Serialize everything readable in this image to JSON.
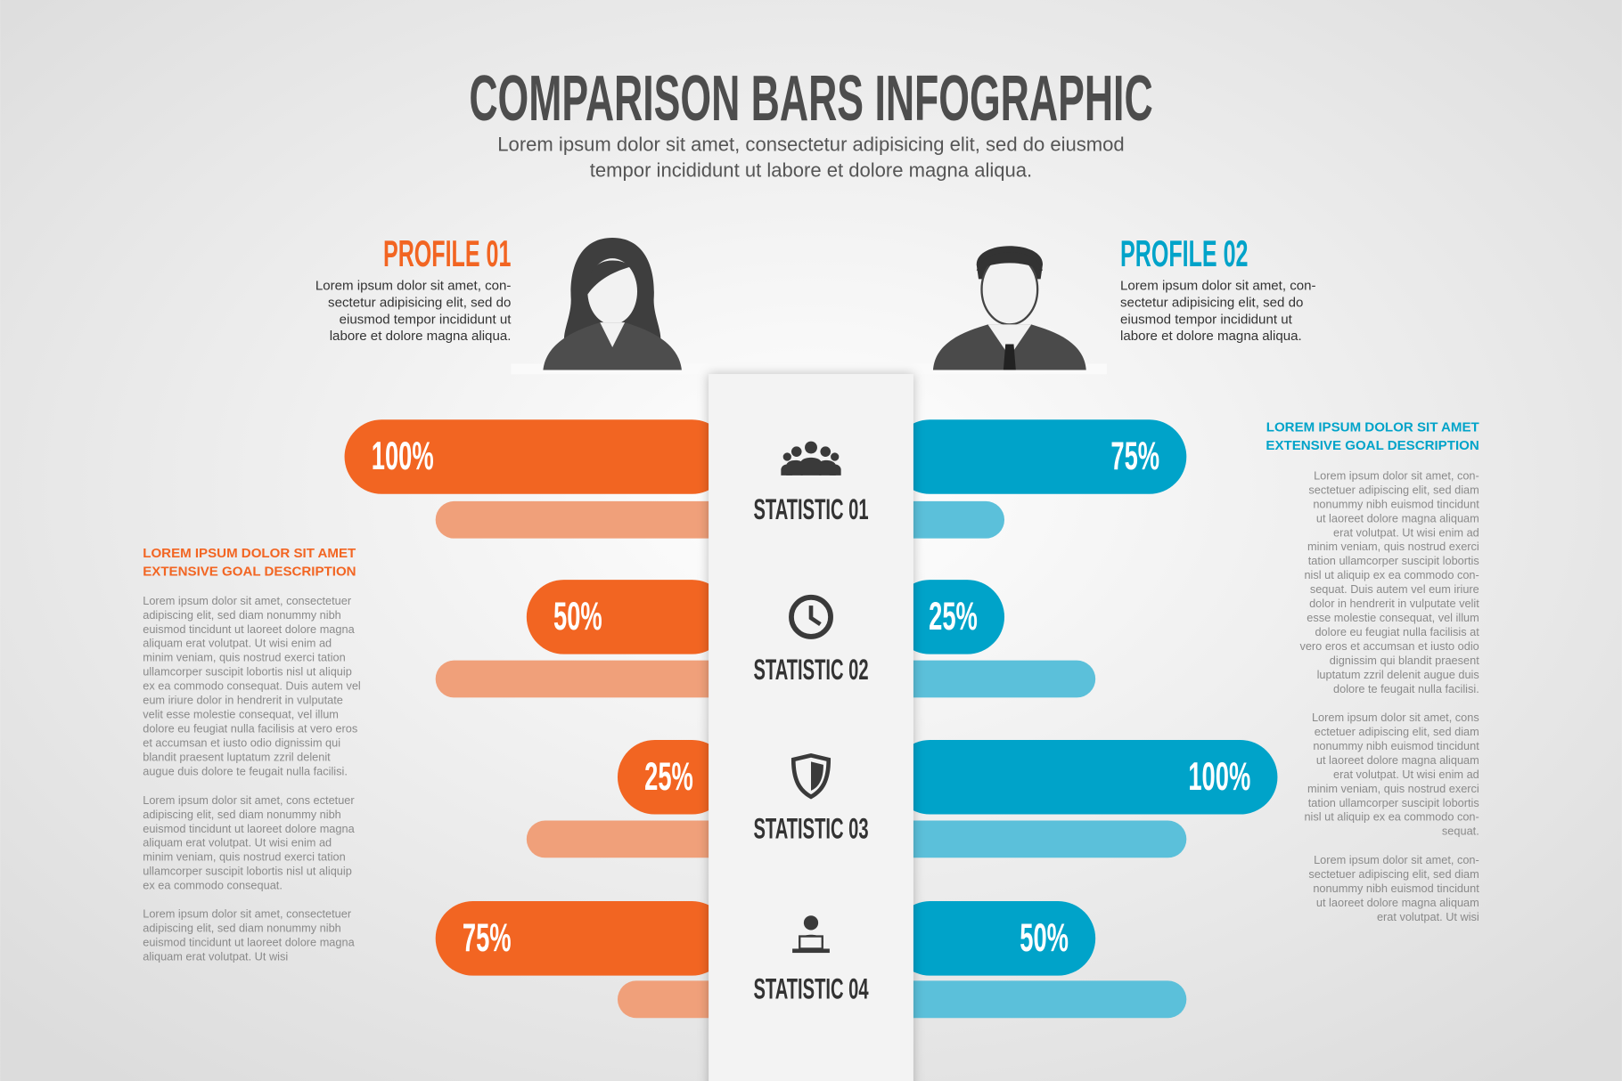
{
  "chart_data": {
    "type": "butterfly",
    "title": "COMPARISON BARS INFOGRAPHIC",
    "subtitle": [
      "Lorem ipsum dolor sit amet, consectetur adipisicing elit, sed do eiusmod",
      "tempor incididunt ut labore et dolore magna aliqua."
    ],
    "categories": [
      "STATISTIC 01",
      "STATISTIC 02",
      "STATISTIC 03",
      "STATISTIC 04"
    ],
    "series": [
      {
        "name": "PROFILE 01",
        "color": "#f26522",
        "shadow_color": "#f0a07a",
        "description": [
          "Lorem ipsum dolor sit amet, con-",
          "sectetur adipisicing elit, sed do",
          "eiusmod tempor incididunt ut",
          "labore et dolore magna aliqua."
        ],
        "values": [
          100,
          50,
          25,
          75
        ],
        "value_labels": [
          "100%",
          "50%",
          "25%",
          "75%"
        ],
        "shadow_values": [
          75,
          75,
          50,
          25
        ]
      },
      {
        "name": "PROFILE 02",
        "color": "#00a3c9",
        "shadow_color": "#5bc0da",
        "description": [
          "Lorem ipsum dolor sit amet, con-",
          "sectetur adipisicing elit, sed do",
          "eiusmod tempor incididunt ut",
          "labore et dolore magna aliqua."
        ],
        "values": [
          75,
          25,
          100,
          50
        ],
        "value_labels": [
          "75%",
          "25%",
          "100%",
          "50%"
        ],
        "shadow_values": [
          25,
          50,
          75,
          75
        ]
      }
    ],
    "annotations": [
      {
        "heading": [
          "LOREM IPSUM DOLOR SIT AMET",
          "EXTENSIVE GOAL DESCRIPTION"
        ],
        "paragraphs": [
          [
            "Lorem ipsum dolor sit amet, consectetuer",
            "adipiscing elit, sed diam nonummy nibh",
            "euismod tincidunt ut laoreet dolore magna",
            "aliquam erat volutpat. Ut wisi enim ad",
            "minim veniam, quis nostrud exerci tation",
            "ullamcorper suscipit lobortis nisl ut aliquip",
            "ex ea commodo consequat. Duis autem vel",
            "eum iriure dolor in hendrerit in vulputate",
            "velit esse molestie consequat, vel illum",
            "dolore eu feugiat nulla facilisis at vero eros",
            "et accumsan et iusto odio dignissim qui",
            "blandit praesent luptatum zzril delenit",
            "augue duis dolore te feugait nulla facilisi."
          ],
          [
            "Lorem ipsum dolor sit amet, cons ectetuer",
            "adipiscing elit, sed diam nonummy nibh",
            "euismod tincidunt ut laoreet dolore magna",
            "aliquam erat volutpat. Ut wisi enim ad",
            "minim veniam, quis nostrud exerci tation",
            "ullamcorper suscipit lobortis nisl ut aliquip",
            "ex ea commodo consequat."
          ],
          [
            "Lorem ipsum dolor sit amet, consectetuer",
            "adipiscing elit, sed diam nonummy nibh",
            "euismod tincidunt ut laoreet dolore magna",
            "aliquam erat volutpat. Ut wisi"
          ]
        ]
      },
      {
        "heading": [
          "LOREM IPSUM DOLOR SIT AMET",
          "EXTENSIVE GOAL DESCRIPTION"
        ],
        "paragraphs": [
          [
            "Lorem ipsum dolor sit amet, con-",
            "sectetuer adipiscing elit, sed diam",
            "nonummy nibh euismod tincidunt",
            "ut laoreet dolore magna aliquam",
            "erat volutpat. Ut wisi enim ad",
            "minim veniam, quis nostrud exerci",
            "tation ullamcorper suscipit lobortis",
            "nisl ut aliquip ex ea commodo con-",
            "sequat. Duis autem vel eum iriure",
            "dolor in hendrerit in vulputate velit",
            "esse molestie consequat, vel illum",
            "dolore eu feugiat nulla facilisis at",
            "vero eros et accumsan et iusto odio",
            "dignissim qui blandit praesent",
            "luptatum zzril delenit augue duis",
            "dolore te feugait nulla facilisi."
          ],
          [
            "Lorem ipsum dolor sit amet, cons",
            "ectetuer adipiscing elit, sed diam",
            "nonummy nibh euismod tincidunt",
            "ut laoreet dolore magna aliquam",
            "erat volutpat. Ut wisi enim ad",
            "minim veniam, quis nostrud exerci",
            "tation ullamcorper suscipit lobortis",
            "nisl ut aliquip ex ea commodo con-",
            "sequat."
          ],
          [
            "Lorem ipsum dolor sit amet, con-",
            "sectetuer adipiscing elit, sed diam",
            "nonummy nibh euismod tincidunt",
            "ut laoreet dolore magna aliquam",
            "erat volutpat. Ut wisi"
          ]
        ]
      }
    ]
  }
}
